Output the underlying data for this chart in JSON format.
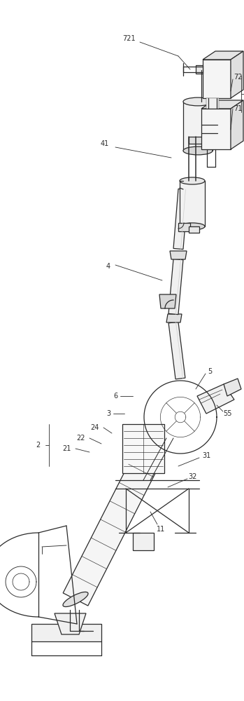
{
  "bg_color": "#ffffff",
  "line_color": "#2a2a2a",
  "lw": 0.9,
  "fs": 7.0
}
